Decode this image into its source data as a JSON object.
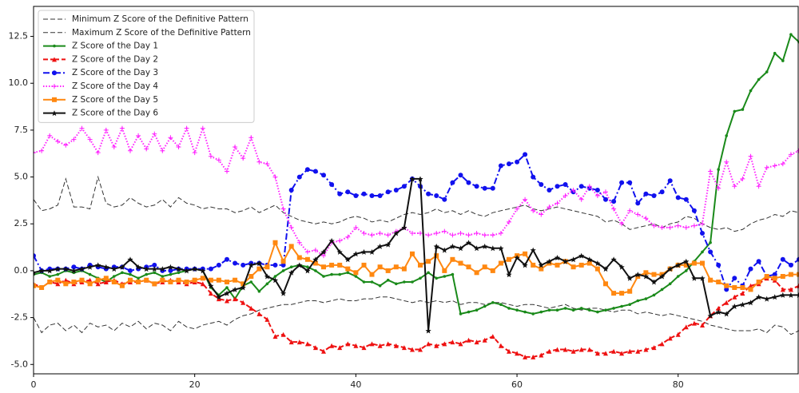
{
  "chart_data": {
    "type": "line",
    "x": [
      0,
      1,
      2,
      3,
      4,
      5,
      6,
      7,
      8,
      9,
      10,
      11,
      12,
      13,
      14,
      15,
      16,
      17,
      18,
      19,
      20,
      21,
      22,
      23,
      24,
      25,
      26,
      27,
      28,
      29,
      30,
      31,
      32,
      33,
      34,
      35,
      36,
      37,
      38,
      39,
      40,
      41,
      42,
      43,
      44,
      45,
      46,
      47,
      48,
      49,
      50,
      51,
      52,
      53,
      54,
      55,
      56,
      57,
      58,
      59,
      60,
      61,
      62,
      63,
      64,
      65,
      66,
      67,
      68,
      69,
      70,
      71,
      72,
      73,
      74,
      75,
      76,
      77,
      78,
      79,
      80,
      81,
      82,
      83,
      84,
      85,
      86,
      87,
      88,
      89,
      90,
      91,
      92,
      93,
      94,
      95
    ],
    "xlim": [
      0,
      95
    ],
    "xticks": [
      0,
      20,
      40,
      60,
      80
    ],
    "ylim": [
      -5.5,
      14.1
    ],
    "yticks": [
      {
        "value": -5,
        "label": "-5.0"
      },
      {
        "value": -2.5,
        "label": "-2.5"
      },
      {
        "value": 0,
        "label": "0.0"
      },
      {
        "value": 2.5,
        "label": "2.5"
      },
      {
        "value": 5,
        "label": "5.0"
      },
      {
        "value": 7.5,
        "label": "7.5"
      },
      {
        "value": 10,
        "label": "10.0"
      },
      {
        "value": 12.5,
        "label": "12.5"
      }
    ],
    "legend": "upper left",
    "series": [
      {
        "name": "Minimum Z Score of the Definitive Pattern",
        "color": "#333333",
        "dash": "dashed",
        "marker": "none",
        "values": [
          -2.5,
          -3.3,
          -2.9,
          -2.8,
          -3.2,
          -2.9,
          -3.3,
          -2.8,
          -3.0,
          -2.9,
          -3.2,
          -2.8,
          -3.0,
          -2.7,
          -3.1,
          -2.8,
          -2.9,
          -3.2,
          -2.7,
          -3.0,
          -3.1,
          -2.9,
          -2.8,
          -2.7,
          -2.9,
          -2.6,
          -2.4,
          -2.3,
          -2.1,
          -2.0,
          -1.9,
          -1.8,
          -1.8,
          -1.7,
          -1.6,
          -1.6,
          -1.7,
          -1.6,
          -1.5,
          -1.6,
          -1.6,
          -1.5,
          -1.5,
          -1.4,
          -1.4,
          -1.5,
          -1.6,
          -1.7,
          -1.6,
          -1.7,
          -1.6,
          -1.7,
          -1.6,
          -1.8,
          -1.7,
          -1.7,
          -1.8,
          -1.7,
          -1.7,
          -1.8,
          -1.9,
          -1.8,
          -1.8,
          -1.9,
          -2.0,
          -1.9,
          -1.8,
          -2.0,
          -2.1,
          -2.0,
          -2.0,
          -2.1,
          -2.2,
          -2.1,
          -2.1,
          -2.3,
          -2.2,
          -2.3,
          -2.4,
          -2.3,
          -2.4,
          -2.5,
          -2.6,
          -2.7,
          -2.9,
          -3.0,
          -3.1,
          -3.2,
          -3.2,
          -3.2,
          -3.1,
          -3.3,
          -2.9,
          -3.0,
          -3.4,
          -3.2
        ]
      },
      {
        "name": "Maximum Z Score of the Definitive Pattern",
        "color": "#333333",
        "dash": "dashed",
        "marker": "none",
        "values": [
          3.8,
          3.2,
          3.3,
          3.5,
          4.9,
          3.4,
          3.4,
          3.3,
          5.0,
          3.6,
          3.4,
          3.5,
          3.9,
          3.6,
          3.4,
          3.5,
          3.8,
          3.4,
          3.9,
          3.6,
          3.5,
          3.3,
          3.4,
          3.3,
          3.3,
          3.1,
          3.2,
          3.4,
          3.1,
          3.3,
          3.5,
          3.1,
          2.9,
          2.7,
          2.6,
          2.5,
          2.6,
          2.5,
          2.6,
          2.8,
          2.9,
          2.8,
          2.6,
          2.7,
          2.6,
          2.8,
          3.0,
          3.1,
          3.0,
          3.1,
          3.3,
          3.1,
          3.2,
          3.0,
          3.2,
          3.0,
          2.9,
          3.1,
          3.2,
          3.3,
          3.4,
          3.5,
          3.3,
          3.2,
          3.3,
          3.4,
          3.3,
          3.2,
          3.1,
          3.0,
          2.9,
          2.6,
          2.7,
          2.5,
          2.2,
          2.3,
          2.4,
          2.5,
          2.3,
          2.5,
          2.6,
          2.9,
          2.8,
          2.5,
          2.3,
          2.2,
          2.3,
          2.1,
          2.2,
          2.5,
          2.7,
          2.8,
          3.0,
          2.9,
          3.2,
          3.1
        ]
      },
      {
        "name": "Z Score of the Day 1",
        "color": "#1a8a1a",
        "dash": "solid",
        "marker": "point",
        "values": [
          -0.2,
          -0.1,
          -0.3,
          -0.2,
          0,
          -0.1,
          0,
          -0.2,
          -0.4,
          -0.6,
          -0.3,
          -0.1,
          -0.2,
          -0.4,
          -0.2,
          -0.1,
          -0.3,
          -0.2,
          -0.1,
          0,
          0.1,
          0,
          -0.9,
          -1.3,
          -0.9,
          -1.5,
          -0.8,
          -0.6,
          -1.1,
          -0.7,
          -0.3,
          0,
          0.2,
          0.3,
          0.2,
          0,
          -0.3,
          -0.2,
          -0.2,
          -0.1,
          -0.3,
          -0.6,
          -0.6,
          -0.8,
          -0.5,
          -0.7,
          -0.6,
          -0.6,
          -0.4,
          -0.1,
          -0.4,
          -0.3,
          -0.2,
          -2.3,
          -2.2,
          -2.1,
          -1.9,
          -1.7,
          -1.8,
          -2.0,
          -2.1,
          -2.2,
          -2.3,
          -2.2,
          -2.1,
          -2.1,
          -2.0,
          -2.1,
          -2.0,
          -2.1,
          -2.2,
          -2.1,
          -2.0,
          -1.9,
          -1.8,
          -1.6,
          -1.5,
          -1.3,
          -1.0,
          -0.7,
          -0.3,
          0,
          0.5,
          1.0,
          1.5,
          5.4,
          7.2,
          8.5,
          8.6,
          9.6,
          10.2,
          10.6,
          11.6,
          11.2,
          12.6,
          12.2
        ]
      },
      {
        "name": "Z Score of the Day 2",
        "color": "#ee1111",
        "dash": "dashed",
        "marker": "triangle",
        "values": [
          -0.7,
          -0.9,
          -0.6,
          -0.7,
          -0.5,
          -0.7,
          -0.6,
          -0.5,
          -0.7,
          -0.6,
          -0.5,
          -0.7,
          -0.6,
          -0.6,
          -0.5,
          -0.7,
          -0.6,
          -0.5,
          -0.6,
          -0.7,
          -0.6,
          -0.7,
          -1.2,
          -1.5,
          -1.6,
          -1.5,
          -1.7,
          -2.0,
          -2.3,
          -2.6,
          -3.5,
          -3.4,
          -3.8,
          -3.8,
          -3.9,
          -4.1,
          -4.3,
          -4.0,
          -4.1,
          -3.9,
          -4.0,
          -4.1,
          -3.9,
          -4.0,
          -3.9,
          -4.0,
          -4.1,
          -4.2,
          -4.2,
          -3.9,
          -4.0,
          -3.9,
          -3.8,
          -3.9,
          -3.7,
          -3.8,
          -3.7,
          -3.5,
          -4.0,
          -4.3,
          -4.4,
          -4.6,
          -4.6,
          -4.5,
          -4.3,
          -4.2,
          -4.2,
          -4.3,
          -4.2,
          -4.2,
          -4.4,
          -4.4,
          -4.3,
          -4.4,
          -4.3,
          -4.3,
          -4.2,
          -4.1,
          -3.9,
          -3.6,
          -3.4,
          -3.0,
          -2.8,
          -2.9,
          -2.4,
          -2.0,
          -1.7,
          -1.4,
          -1.2,
          -0.8,
          -0.7,
          -0.4,
          -0.5,
          -1.0,
          -1.0,
          -0.8
        ]
      },
      {
        "name": "Z Score of the Day 3",
        "color": "#1111ee",
        "dash": "dashdot",
        "marker": "circle",
        "values": [
          0.8,
          0,
          0.1,
          0.1,
          0.1,
          0.2,
          0.1,
          0.3,
          0.2,
          0.1,
          0.2,
          0.2,
          0,
          0.1,
          0.2,
          0.3,
          0,
          0,
          0.1,
          0.1,
          0.1,
          0.1,
          0.1,
          0.3,
          0.6,
          0.4,
          0.3,
          0.4,
          0.4,
          0.3,
          0.3,
          0.3,
          4.3,
          5.0,
          5.4,
          5.3,
          5.1,
          4.6,
          4.1,
          4.2,
          4.0,
          4.1,
          4.0,
          4.0,
          4.2,
          4.3,
          4.5,
          4.9,
          4.5,
          4.1,
          4.0,
          3.8,
          4.7,
          5.1,
          4.7,
          4.5,
          4.4,
          4.4,
          5.6,
          5.7,
          5.8,
          6.2,
          5.0,
          4.6,
          4.3,
          4.5,
          4.6,
          4.2,
          4.5,
          4.4,
          4.3,
          3.8,
          3.7,
          4.7,
          4.7,
          3.6,
          4.1,
          4.0,
          4.2,
          4.8,
          3.9,
          3.8,
          3.2,
          2.0,
          1.0,
          0.3,
          -1.0,
          -0.4,
          -0.8,
          0.1,
          0.5,
          -0.3,
          -0.2,
          0.6,
          0.3,
          0.6
        ]
      },
      {
        "name": "Z Score of the Day 4",
        "color": "#ff22ff",
        "dash": "dotted",
        "marker": "plus",
        "values": [
          6.3,
          6.4,
          7.2,
          6.9,
          6.7,
          7.0,
          7.6,
          7.0,
          6.3,
          7.5,
          6.6,
          7.6,
          6.4,
          7.2,
          6.5,
          7.3,
          6.4,
          7.1,
          6.6,
          7.6,
          6.3,
          7.6,
          6.1,
          5.9,
          5.3,
          6.6,
          6.0,
          7.1,
          5.8,
          5.7,
          5.0,
          3.3,
          2.3,
          1.5,
          1.0,
          1.1,
          0.8,
          1.5,
          1.6,
          1.8,
          2.3,
          2.0,
          1.9,
          2.0,
          1.9,
          2.1,
          2.3,
          2.0,
          2.0,
          1.9,
          2.0,
          2.1,
          1.9,
          2.0,
          1.9,
          2.0,
          1.9,
          1.9,
          2.0,
          2.6,
          3.3,
          3.8,
          3.2,
          3.0,
          3.4,
          3.6,
          4.0,
          4.3,
          3.8,
          4.5,
          4.0,
          4.2,
          3.3,
          2.5,
          3.2,
          3.0,
          2.8,
          2.4,
          2.3,
          2.3,
          2.4,
          2.3,
          2.4,
          2.5,
          5.3,
          4.4,
          5.8,
          4.5,
          4.9,
          6.1,
          4.5,
          5.5,
          5.6,
          5.7,
          6.2,
          6.4
        ]
      },
      {
        "name": "Z Score of the Day 5",
        "color": "#ff8811",
        "dash": "solid",
        "marker": "square",
        "values": [
          -0.8,
          -0.9,
          -0.6,
          -0.5,
          -0.7,
          -0.6,
          -0.5,
          -0.7,
          -0.5,
          -0.4,
          -0.6,
          -0.8,
          -0.5,
          -0.6,
          -0.5,
          -0.7,
          -0.5,
          -0.6,
          -0.5,
          -0.6,
          -0.5,
          -0.4,
          -0.5,
          -0.5,
          -0.6,
          -0.5,
          -0.7,
          -0.3,
          0.1,
          0.2,
          1.5,
          0.5,
          1.3,
          0.7,
          0.6,
          0.4,
          0.2,
          0.3,
          0.3,
          0.1,
          -0.1,
          0.3,
          -0.2,
          0.2,
          0,
          0.2,
          0.1,
          0.9,
          0.3,
          0.5,
          0.8,
          0,
          0.6,
          0.4,
          0.2,
          -0.1,
          0.2,
          0,
          0.4,
          0.6,
          0.8,
          0.9,
          0.3,
          0.1,
          0.4,
          0.3,
          0.5,
          0.2,
          0.3,
          0.4,
          0.1,
          -0.7,
          -1.2,
          -1.2,
          -1.1,
          -0.3,
          -0.1,
          -0.2,
          -0.2,
          0.1,
          0.3,
          0.3,
          0.4,
          0.4,
          -0.5,
          -0.6,
          -0.8,
          -0.9,
          -0.9,
          -1.0,
          -0.6,
          -0.3,
          -0.4,
          -0.3,
          -0.2,
          -0.2
        ]
      },
      {
        "name": "Z Score of the Day 6",
        "color": "#111111",
        "dash": "solid",
        "marker": "star",
        "values": [
          -0.1,
          0,
          0,
          0.1,
          0.1,
          0,
          0.1,
          0.2,
          0.3,
          0.2,
          0.1,
          0.2,
          0.6,
          0.2,
          0.1,
          0.1,
          0.1,
          0.2,
          0.1,
          0,
          0.1,
          0,
          -0.8,
          -1.4,
          -1.2,
          -1.0,
          -0.9,
          0.3,
          0.4,
          -0.3,
          -0.5,
          -1.2,
          -0.1,
          0.3,
          0,
          0.6,
          1.0,
          1.6,
          1.0,
          0.6,
          0.9,
          1.0,
          1.0,
          1.3,
          1.4,
          2.0,
          2.3,
          4.9,
          4.9,
          -3.2,
          1.3,
          1.1,
          1.3,
          1.2,
          1.5,
          1.2,
          1.3,
          1.2,
          1.2,
          -0.2,
          0.7,
          0.3,
          1.1,
          0.3,
          0.5,
          0.7,
          0.5,
          0.6,
          0.8,
          0.6,
          0.4,
          0.1,
          0.6,
          0.2,
          -0.4,
          -0.2,
          -0.3,
          -0.6,
          -0.3,
          0.1,
          0.3,
          0.5,
          -0.4,
          -0.4,
          -2.4,
          -2.2,
          -2.3,
          -1.9,
          -1.8,
          -1.7,
          -1.4,
          -1.5,
          -1.4,
          -1.3,
          -1.3,
          -1.3
        ]
      }
    ]
  }
}
